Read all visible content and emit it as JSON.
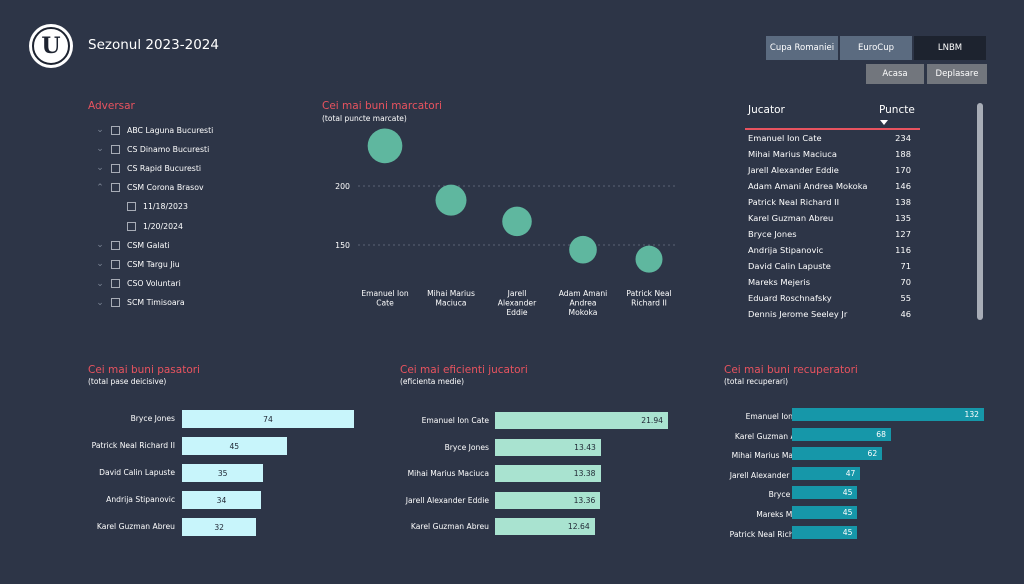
{
  "header": {
    "title": "Sezonul 2023-2024",
    "logo_letter": "U"
  },
  "top_buttons": [
    {
      "label": "Cupa Romaniei"
    },
    {
      "label": "EuroCup"
    },
    {
      "label": "LNBM"
    }
  ],
  "venue_buttons": [
    {
      "label": "Acasa"
    },
    {
      "label": "Deplasare"
    }
  ],
  "slicer": {
    "title": "Adversar",
    "items": [
      {
        "label": "ABC Laguna Bucuresti",
        "expanded": false
      },
      {
        "label": "CS Dinamo Bucuresti",
        "expanded": false
      },
      {
        "label": "CS Rapid Bucuresti",
        "expanded": false
      },
      {
        "label": "CSM Corona Brasov",
        "expanded": true
      },
      {
        "label": "11/18/2023",
        "child": true
      },
      {
        "label": "1/20/2024",
        "child": true
      },
      {
        "label": "CSM Galati",
        "expanded": false
      },
      {
        "label": "CSM Targu Jiu",
        "expanded": false
      },
      {
        "label": "CSO Voluntari",
        "expanded": false
      },
      {
        "label": "SCM Timisoara",
        "expanded": false
      }
    ]
  },
  "scorers_chart": {
    "title": "Cei mai buni marcatori",
    "subtitle": "(total puncte marcate)"
  },
  "table": {
    "col_player": "Jucator",
    "col_points": "Puncte",
    "rows": [
      {
        "name": "Emanuel Ion Cate",
        "points": "234"
      },
      {
        "name": "Mihai Marius Maciuca",
        "points": "188"
      },
      {
        "name": "Jarell Alexander Eddie",
        "points": "170"
      },
      {
        "name": "Adam Amani Andrea Mokoka",
        "points": "146"
      },
      {
        "name": "Patrick Neal Richard II",
        "points": "138"
      },
      {
        "name": "Karel Guzman Abreu",
        "points": "135"
      },
      {
        "name": "Bryce Jones",
        "points": "127"
      },
      {
        "name": "Andrija Stipanovic",
        "points": "116"
      },
      {
        "name": "David Calin Lapuste",
        "points": "71"
      },
      {
        "name": "Mareks Mejeris",
        "points": "70"
      },
      {
        "name": "Eduard Roschnafsky",
        "points": "55"
      },
      {
        "name": "Dennis Jerome Seeley Jr",
        "points": "46"
      }
    ]
  },
  "passers": {
    "title": "Cei mai buni pasatori",
    "subtitle": "(total pase deicisive)"
  },
  "efficient": {
    "title": "Cei mai eficienti jucatori",
    "subtitle": "(eficienta medie)"
  },
  "rebounders": {
    "title": "Cei mai buni recuperatori",
    "subtitle": "(total recuperari)"
  },
  "colors": {
    "background": "#2d3547",
    "accent_red": "#e8535f",
    "bubble": "#5fb79f",
    "pass_bar": "#c8f5fb",
    "eff_bar": "#a9e3d0",
    "reb_bar": "#1697a9"
  },
  "chart_data": [
    {
      "type": "scatter",
      "title": "Cei mai buni marcatori",
      "subtitle": "(total puncte marcate)",
      "categories": [
        "Emanuel Ion Cate",
        "Mihai Marius Maciuca",
        "Jarell Alexander Eddie",
        "Adam Amani Andrea Mokoka",
        "Patrick Neal Richard II"
      ],
      "values": [
        234,
        188,
        170,
        146,
        138
      ],
      "y_ticks": [
        150,
        200
      ],
      "grid": true
    },
    {
      "type": "bar",
      "orientation": "horizontal",
      "title": "Cei mai buni pasatori",
      "subtitle": "(total pase deicisive)",
      "categories": [
        "Bryce Jones",
        "Patrick Neal Richard II",
        "David Calin Lapuste",
        "Andrija Stipanovic",
        "Karel Guzman Abreu"
      ],
      "values": [
        74,
        45,
        35,
        34,
        32
      ]
    },
    {
      "type": "bar",
      "orientation": "horizontal",
      "title": "Cei mai eficienti jucatori",
      "subtitle": "(eficienta medie)",
      "categories": [
        "Emanuel Ion Cate",
        "Bryce Jones",
        "Mihai Marius Maciuca",
        "Jarell Alexander Eddie",
        "Karel Guzman Abreu"
      ],
      "values": [
        21.94,
        13.43,
        13.38,
        13.36,
        12.64
      ]
    },
    {
      "type": "bar",
      "orientation": "horizontal",
      "title": "Cei mai buni recuperatori",
      "subtitle": "(total recuperari)",
      "categories": [
        "Emanuel Ion Cate",
        "Karel Guzman Abreu",
        "Mihai Marius Maciuca",
        "Jarell Alexander Eddie",
        "Bryce Jones",
        "Mareks Mejeris",
        "Patrick Neal Richard II"
      ],
      "values": [
        132,
        68,
        62,
        47,
        45,
        45,
        45
      ]
    }
  ]
}
